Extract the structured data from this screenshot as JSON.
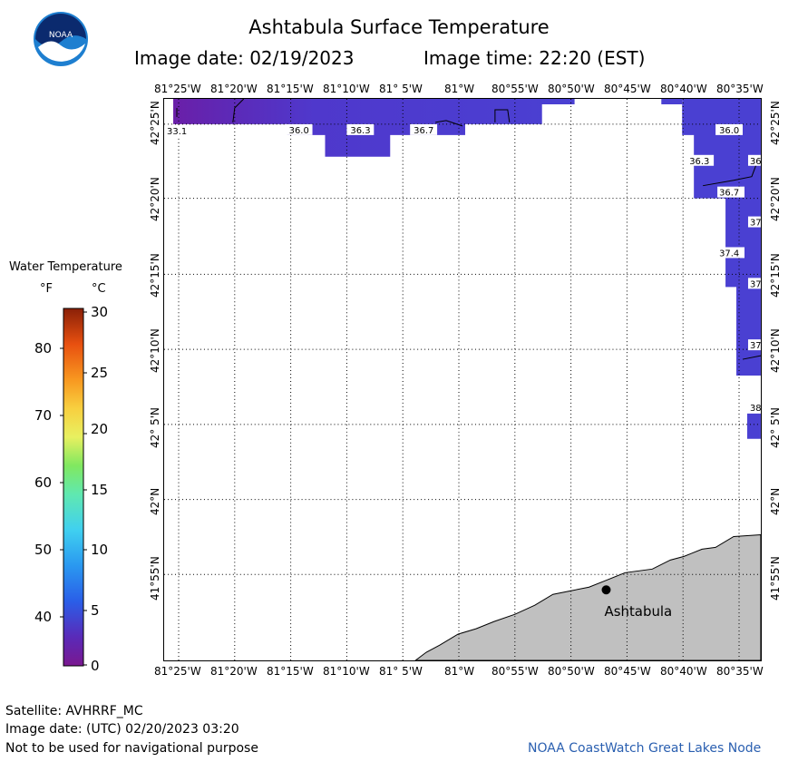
{
  "header": {
    "title": "Ashtabula Surface Temperature",
    "image_date": "Image date: 02/19/2023",
    "image_time": "Image time: 22:20 (EST)"
  },
  "logo": {
    "text": "NOAA"
  },
  "legend": {
    "title": "Water Temperature",
    "unit_f": "°F",
    "unit_c": "°C",
    "f_ticks": [
      "80",
      "70",
      "60",
      "50",
      "40"
    ],
    "c_ticks": [
      "30",
      "25",
      "20",
      "15",
      "10",
      "5",
      "0"
    ]
  },
  "axes": {
    "lon_labels": [
      "81°25'W",
      "81°20'W",
      "81°15'W",
      "81°10'W",
      "81° 5'W",
      "81°W",
      "80°55'W",
      "80°50'W",
      "80°45'W",
      "80°40'W",
      "80°35'W"
    ],
    "lat_labels": [
      "42°25'N",
      "42°20'N",
      "42°15'N",
      "42°10'N",
      "42° 5'N",
      "42°N",
      "41°55'N"
    ]
  },
  "map": {
    "place_label": "Ashtabula",
    "temp_labels": [
      "33.1",
      "36.0",
      "36.3",
      "36.7",
      "36.0",
      "36.3",
      "36",
      "36.7",
      "37",
      "37.4",
      "37",
      "37",
      "38"
    ],
    "land_color": "#c0c0c0",
    "water_color": "#5a3fd0"
  },
  "footer": {
    "satellite": "Satellite: AVHRRF_MC",
    "utc_date": "Image date: (UTC) 02/20/2023  03:20",
    "disclaimer": "Not to be used for navigational purpose",
    "credit": "NOAA CoastWatch Great Lakes Node"
  }
}
